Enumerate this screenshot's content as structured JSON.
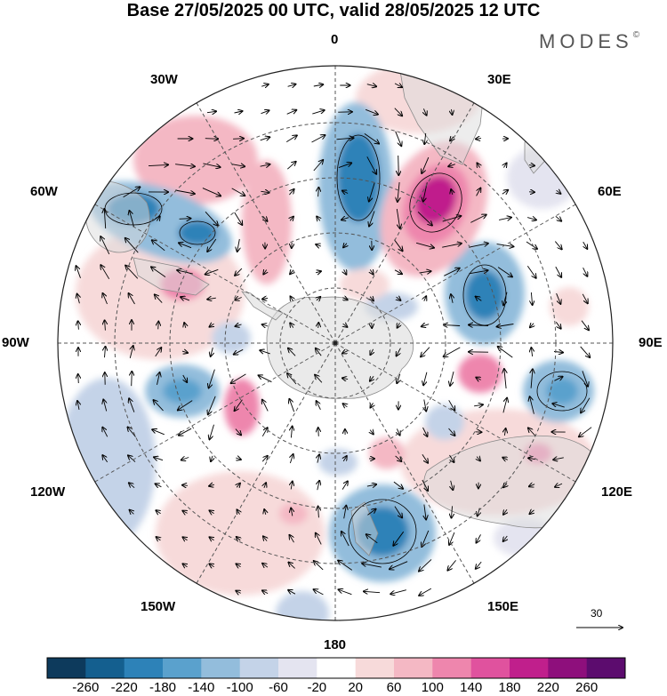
{
  "title": "Base 27/05/2025 00 UTC, valid 28/05/2025 12 UTC",
  "brand": "MODES",
  "brand_mark": "©",
  "longitude_labels": {
    "lon_0": "0",
    "lon_30e": "30E",
    "lon_60e": "60E",
    "lon_90e": "90E",
    "lon_120e": "120E",
    "lon_150e": "150E",
    "lon_180": "180",
    "lon_150w": "150W",
    "lon_120w": "120W",
    "lon_90w": "90W",
    "lon_60w": "60W",
    "lon_30w": "30W"
  },
  "reference_vector_label": "30",
  "colorbar": {
    "labels": [
      "-260",
      "-220",
      "-180",
      "-140",
      "-100",
      "-60",
      "-20",
      "20",
      "60",
      "100",
      "140",
      "180",
      "220",
      "260"
    ],
    "colors": [
      "#0d3a5c",
      "#145f8f",
      "#2d82b8",
      "#5aa1cd",
      "#93bddc",
      "#c4d3e8",
      "#e4e4f0",
      "#ffffff",
      "#f7dada",
      "#f4b8c4",
      "#ee86ad",
      "#e0529e",
      "#c01f8c",
      "#8e0f7c",
      "#5c0c6e"
    ]
  },
  "colors": {
    "land": "#dcdcdc",
    "coast": "#8a8a8a",
    "grid": "#555555",
    "vector": "#000000"
  }
}
